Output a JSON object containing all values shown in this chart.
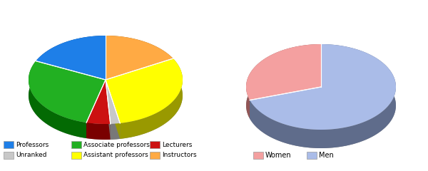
{
  "chart1": {
    "labels": [
      "Professors",
      "Associate professors",
      "Lecturers",
      "Unranked",
      "Assistant professors",
      "Instructors"
    ],
    "values": [
      18,
      28,
      5,
      2,
      30,
      17
    ],
    "colors": [
      "#1e7fe8",
      "#22b022",
      "#cc1111",
      "#c8c8c8",
      "#ffff00",
      "#ffaa44"
    ],
    "start_angle": 90
  },
  "chart2": {
    "labels": [
      "Women",
      "Men"
    ],
    "values": [
      30,
      70
    ],
    "colors": [
      "#f4a0a0",
      "#aabce8"
    ],
    "start_angle": 90
  },
  "fig_width": 6.0,
  "fig_height": 2.4
}
